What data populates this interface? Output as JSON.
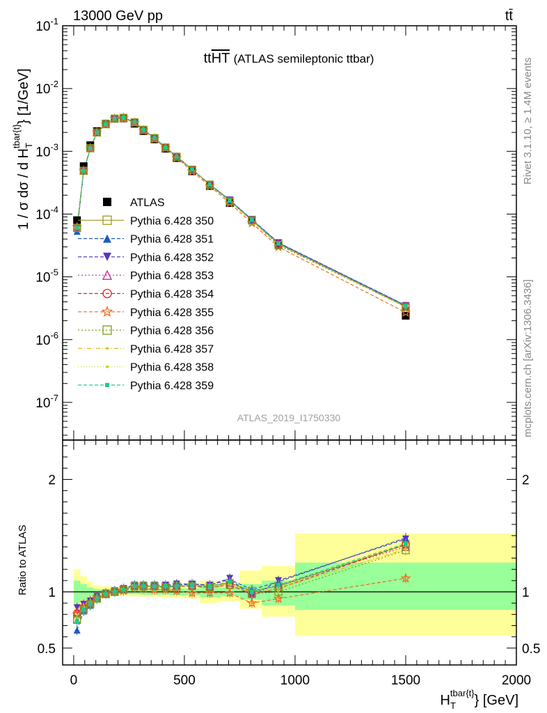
{
  "header": {
    "left": "13000 GeV pp",
    "right": "tt̄"
  },
  "side_labels": {
    "rivet": "Rivet 3.1.10, ≥ 1.4M events",
    "mcplots": "mcplots.cern.ch [arXiv:1306.3436]"
  },
  "plot_title": {
    "main": "tt",
    "overline": "HT",
    "sub": "(ATLAS semileptonic ttbar)"
  },
  "analysis_tag": "ATLAS_2019_I1750330",
  "ylabel_top": {
    "prefix": "1 / σ dσ / d H",
    "sub": "T",
    "sup": "tbar{t}",
    "suffix": "} [1/GeV]"
  },
  "ylabel_ratio": "Ratio to ATLAS",
  "xlabel": {
    "prefix": "H",
    "sub": "T",
    "sup": "tbar{t}",
    "suffix": "} [GeV]"
  },
  "legend": [
    "ATLAS",
    "Pythia 6.428 350",
    "Pythia 6.428 351",
    "Pythia 6.428 352",
    "Pythia 6.428 353",
    "Pythia 6.428 354",
    "Pythia 6.428 355",
    "Pythia 6.428 356",
    "Pythia 6.428 357",
    "Pythia 6.428 358",
    "Pythia 6.428 359"
  ],
  "chart_data": [
    {
      "type": "scatter",
      "panel": "main",
      "x": [
        15,
        45,
        75,
        105,
        145,
        185,
        225,
        275,
        315,
        365,
        415,
        465,
        535,
        615,
        705,
        805,
        925,
        1500
      ],
      "xlim": [
        -50,
        2000
      ],
      "ylim_log": [
        -7.6,
        -1
      ],
      "ytick_labels": [
        "10^{-7}",
        "10^{-6}",
        "10^{-5}",
        "10^{-4}",
        "10^{-3}",
        "10^{-2}",
        "10^{-1}"
      ],
      "xtick_labels": [
        "0",
        "500",
        "1000",
        "1500",
        "2000"
      ],
      "series": [
        {
          "name": "ATLAS",
          "color": "#000000",
          "marker": "filled-square",
          "values": [
            8e-05,
            0.00058,
            0.00125,
            0.0021,
            0.00275,
            0.0033,
            0.00335,
            0.00275,
            0.0021,
            0.00155,
            0.0011,
            0.00078,
            0.00048,
            0.00028,
            0.00015,
            8e-05,
            3.2e-05,
            2.4e-06
          ]
        },
        {
          "name": "Pythia 6.428 350",
          "color": "#a09a1e",
          "marker": "open-square",
          "dash": "",
          "values": [
            6e-05,
            0.00049,
            0.00112,
            0.002,
            0.0027,
            0.00332,
            0.00342,
            0.0029,
            0.0022,
            0.00162,
            0.00115,
            0.00082,
            0.00051,
            0.000295,
            0.000162,
            8.1e-05,
            3.4e-05,
            3.4e-06
          ]
        },
        {
          "name": "Pythia 6.428 351",
          "color": "#1a5bc6",
          "marker": "filled-triangle-up",
          "dash": "5,3",
          "values": [
            5.3e-05,
            0.00048,
            0.0011,
            0.00198,
            0.0027,
            0.0033,
            0.00342,
            0.0029,
            0.0022,
            0.00163,
            0.00116,
            0.00083,
            0.000515,
            0.000298,
            0.000167,
            8.2e-05,
            3.5e-05,
            3.5e-06
          ]
        },
        {
          "name": "Pythia 6.428 352",
          "color": "#5a34c4",
          "marker": "filled-triangle-down",
          "dash": "5,3",
          "values": [
            6.2e-05,
            0.00049,
            0.00112,
            0.002,
            0.00272,
            0.00332,
            0.00343,
            0.00292,
            0.00222,
            0.00164,
            0.00116,
            0.00083,
            0.000515,
            0.000298,
            0.000168,
            8.2e-05,
            3.5e-05,
            3.5e-06
          ]
        },
        {
          "name": "Pythia 6.428 353",
          "color": "#c02aa0",
          "marker": "open-triangle-up",
          "dash": "2,3",
          "values": [
            6e-05,
            0.00049,
            0.00112,
            0.002,
            0.00271,
            0.00331,
            0.00342,
            0.0029,
            0.0022,
            0.00162,
            0.00115,
            0.00082,
            0.00051,
            0.000295,
            0.000162,
            8e-05,
            3.4e-05,
            3.4e-06
          ]
        },
        {
          "name": "Pythia 6.428 354",
          "color": "#e0202a",
          "marker": "open-circle",
          "dash": "5,3",
          "values": [
            6.1e-05,
            0.00049,
            0.00112,
            0.002,
            0.00271,
            0.00331,
            0.00342,
            0.0029,
            0.0022,
            0.00162,
            0.00115,
            0.00082,
            0.00051,
            0.000294,
            0.000162,
            7.9e-05,
            3.3e-05,
            3.4e-06
          ]
        },
        {
          "name": "Pythia 6.428 355",
          "color": "#ef6a1e",
          "marker": "open-star",
          "dash": "5,3",
          "values": [
            6.2e-05,
            0.00049,
            0.00112,
            0.002,
            0.0027,
            0.0033,
            0.0034,
            0.00285,
            0.00215,
            0.00158,
            0.00112,
            0.00079,
            0.00048,
            0.00028,
            0.00015,
            7.2e-05,
            3e-05,
            2.7e-06
          ]
        },
        {
          "name": "Pythia 6.428 356",
          "color": "#7c9c1c",
          "marker": "open-square",
          "dash": "2,3",
          "values": [
            6e-05,
            0.00049,
            0.00112,
            0.002,
            0.0027,
            0.00331,
            0.00342,
            0.0029,
            0.0022,
            0.00162,
            0.00115,
            0.00082,
            0.00051,
            0.000294,
            0.00016,
            7.9e-05,
            3.2e-05,
            3.3e-06
          ]
        },
        {
          "name": "Pythia 6.428 357",
          "color": "#e6b81a",
          "marker": "filled-star-small",
          "dash": "6,3,1,3",
          "values": [
            6e-05,
            0.00049,
            0.00112,
            0.002,
            0.0027,
            0.00331,
            0.00342,
            0.0029,
            0.0022,
            0.00162,
            0.00115,
            0.00082,
            0.00051,
            0.000295,
            0.000162,
            8e-05,
            3.3e-05,
            3.3e-06
          ]
        },
        {
          "name": "Pythia 6.428 358",
          "color": "#c6d21c",
          "marker": "filled-dot",
          "dash": "1,3",
          "values": [
            6e-05,
            0.00049,
            0.00112,
            0.002,
            0.0027,
            0.00331,
            0.00342,
            0.0029,
            0.0022,
            0.00162,
            0.00115,
            0.00082,
            0.00051,
            0.000295,
            0.000162,
            8e-05,
            3.3e-05,
            3.3e-06
          ]
        },
        {
          "name": "Pythia 6.428 359",
          "color": "#1ec98e",
          "marker": "filled-square-small",
          "dash": "5,3",
          "values": [
            6e-05,
            0.00049,
            0.00112,
            0.002,
            0.0027,
            0.00331,
            0.00342,
            0.0029,
            0.0022,
            0.00162,
            0.00115,
            0.00082,
            0.000515,
            0.000296,
            0.000165,
            8.1e-05,
            3.4e-05,
            3.4e-06
          ]
        }
      ]
    },
    {
      "type": "scatter",
      "panel": "ratio",
      "xlim": [
        -50,
        2000
      ],
      "ylim": [
        0.35,
        2.35
      ],
      "ytick_labels": [
        "0.5",
        "1",
        "2"
      ],
      "reference_line": 1,
      "bands": [
        {
          "x0": 0,
          "x1": 30,
          "y_outer": [
            0.8,
            1.2
          ],
          "y_inner": [
            0.9,
            1.1
          ]
        },
        {
          "x0": 30,
          "x1": 60,
          "y_outer": [
            0.86,
            1.14
          ],
          "y_inner": [
            0.93,
            1.07
          ]
        },
        {
          "x0": 60,
          "x1": 90,
          "y_outer": [
            0.92,
            1.09
          ],
          "y_inner": [
            0.96,
            1.04
          ]
        },
        {
          "x0": 90,
          "x1": 120,
          "y_outer": [
            0.95,
            1.06
          ],
          "y_inner": [
            0.975,
            1.025
          ]
        },
        {
          "x0": 120,
          "x1": 170,
          "y_outer": [
            0.96,
            1.05
          ],
          "y_inner": [
            0.98,
            1.02
          ]
        },
        {
          "x0": 170,
          "x1": 200,
          "y_outer": [
            0.965,
            1.04
          ],
          "y_inner": [
            0.982,
            1.018
          ]
        },
        {
          "x0": 200,
          "x1": 250,
          "y_outer": [
            0.965,
            1.04
          ],
          "y_inner": [
            0.982,
            1.018
          ]
        },
        {
          "x0": 250,
          "x1": 300,
          "y_outer": [
            0.96,
            1.045
          ],
          "y_inner": [
            0.98,
            1.02
          ]
        },
        {
          "x0": 300,
          "x1": 330,
          "y_outer": [
            0.955,
            1.05
          ],
          "y_inner": [
            0.975,
            1.025
          ]
        },
        {
          "x0": 330,
          "x1": 400,
          "y_outer": [
            0.955,
            1.05
          ],
          "y_inner": [
            0.975,
            1.025
          ]
        },
        {
          "x0": 400,
          "x1": 430,
          "y_outer": [
            0.95,
            1.055
          ],
          "y_inner": [
            0.975,
            1.025
          ]
        },
        {
          "x0": 430,
          "x1": 500,
          "y_outer": [
            0.945,
            1.06
          ],
          "y_inner": [
            0.97,
            1.03
          ]
        },
        {
          "x0": 500,
          "x1": 570,
          "y_outer": [
            0.94,
            1.065
          ],
          "y_inner": [
            0.97,
            1.03
          ]
        },
        {
          "x0": 570,
          "x1": 660,
          "y_outer": [
            0.9,
            1.1
          ],
          "y_inner": [
            0.95,
            1.05
          ]
        },
        {
          "x0": 660,
          "x1": 750,
          "y_outer": [
            0.915,
            1.085
          ],
          "y_inner": [
            0.96,
            1.04
          ]
        },
        {
          "x0": 750,
          "x1": 850,
          "y_outer": [
            0.85,
            1.19
          ],
          "y_inner": [
            0.93,
            1.07
          ]
        },
        {
          "x0": 850,
          "x1": 1000,
          "y_outer": [
            0.78,
            1.23
          ],
          "y_inner": [
            0.88,
            1.1
          ]
        },
        {
          "x0": 1000,
          "x1": 2000,
          "y_outer": [
            0.61,
            1.52
          ],
          "y_inner": [
            0.84,
            1.26
          ]
        }
      ],
      "x": [
        15,
        45,
        75,
        105,
        145,
        185,
        225,
        275,
        315,
        365,
        415,
        465,
        535,
        615,
        705,
        805,
        925,
        1500
      ],
      "series": [
        {
          "name": "Pythia 6.428 350",
          "values": [
            0.76,
            0.85,
            0.9,
            0.94,
            0.98,
            1.0,
            1.02,
            1.05,
            1.05,
            1.05,
            1.05,
            1.05,
            1.06,
            1.05,
            1.08,
            1.01,
            1.05,
            1.42
          ]
        },
        {
          "name": "Pythia 6.428 351",
          "values": [
            0.66,
            0.83,
            0.88,
            0.94,
            0.98,
            1.0,
            1.02,
            1.05,
            1.05,
            1.05,
            1.05,
            1.06,
            1.07,
            1.06,
            1.11,
            1.02,
            1.09,
            1.48
          ]
        },
        {
          "name": "Pythia 6.428 352",
          "values": [
            0.86,
            0.89,
            0.92,
            0.96,
            0.99,
            1.01,
            1.03,
            1.06,
            1.06,
            1.06,
            1.06,
            1.07,
            1.07,
            1.06,
            1.12,
            0.96,
            1.1,
            1.47
          ]
        },
        {
          "name": "Pythia 6.428 353",
          "values": [
            0.82,
            0.87,
            0.91,
            0.95,
            0.98,
            1.0,
            1.02,
            1.05,
            1.05,
            1.05,
            1.05,
            1.05,
            1.06,
            1.05,
            1.08,
            0.99,
            1.06,
            1.4
          ]
        },
        {
          "name": "Pythia 6.428 354",
          "values": [
            0.81,
            0.86,
            0.9,
            0.94,
            0.98,
            1.0,
            1.02,
            1.05,
            1.05,
            1.05,
            1.04,
            1.05,
            1.05,
            1.04,
            1.06,
            0.98,
            1.03,
            1.42
          ]
        },
        {
          "name": "Pythia 6.428 355",
          "values": [
            0.8,
            0.86,
            0.9,
            0.94,
            0.98,
            1.0,
            1.01,
            1.04,
            1.03,
            1.02,
            1.02,
            1.01,
            0.99,
            0.99,
            0.99,
            0.9,
            0.94,
            1.12
          ]
        },
        {
          "name": "Pythia 6.428 356",
          "values": [
            0.75,
            0.84,
            0.89,
            0.94,
            0.98,
            1.0,
            1.02,
            1.05,
            1.05,
            1.05,
            1.04,
            1.05,
            1.05,
            1.04,
            1.06,
            0.98,
            1.0,
            1.37
          ]
        },
        {
          "name": "Pythia 6.428 357",
          "values": [
            0.76,
            0.85,
            0.9,
            0.94,
            0.98,
            1.0,
            1.02,
            1.05,
            1.05,
            1.05,
            1.05,
            1.05,
            1.06,
            1.05,
            1.07,
            0.99,
            1.03,
            1.38
          ]
        },
        {
          "name": "Pythia 6.428 358",
          "values": [
            0.76,
            0.85,
            0.9,
            0.94,
            0.98,
            1.0,
            1.02,
            1.05,
            1.05,
            1.05,
            1.05,
            1.05,
            1.06,
            1.05,
            1.07,
            0.99,
            1.03,
            1.38
          ]
        },
        {
          "name": "Pythia 6.428 359",
          "values": [
            0.74,
            0.84,
            0.89,
            0.94,
            0.98,
            1.0,
            1.02,
            1.05,
            1.05,
            1.05,
            1.05,
            1.05,
            1.06,
            1.05,
            1.09,
            1.0,
            1.06,
            1.43
          ]
        }
      ]
    }
  ]
}
